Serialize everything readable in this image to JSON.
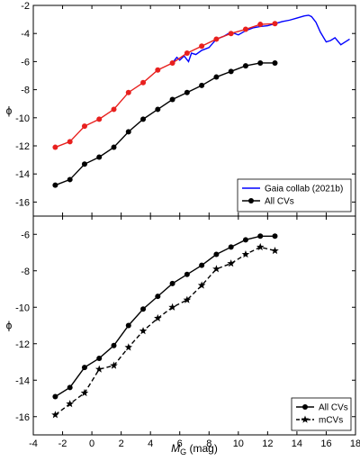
{
  "chart_data": [
    {
      "panel": "top",
      "type": "line",
      "xlabel": "",
      "ylabel": "ϕ",
      "xlim": [
        -4,
        18
      ],
      "ylim": [
        -17,
        -2
      ],
      "xticks": [
        -4,
        -2,
        0,
        2,
        4,
        6,
        8,
        10,
        12,
        14,
        16,
        18
      ],
      "yticks": [
        -16,
        -14,
        -12,
        -10,
        -8,
        -6,
        -4,
        -2
      ],
      "yticklabels": [
        "-16",
        "-14",
        "-12",
        "-10",
        "-8",
        "-6",
        "-4",
        "-2"
      ],
      "legend_position": "bottom-right",
      "series": [
        {
          "name": "Gaia collab (2021b)",
          "style": "solid-line",
          "color": "#0000ff",
          "in_legend": true,
          "x": [
            5.5,
            5.8,
            6.0,
            6.3,
            6.6,
            6.8,
            7.1,
            7.5,
            8.0,
            8.5,
            9.0,
            9.5,
            10.0,
            10.5,
            11.0,
            11.5,
            12.0,
            12.5,
            13.0,
            13.5,
            14.0,
            14.5,
            14.8,
            15.0,
            15.3,
            15.6,
            16.0,
            16.3,
            16.6,
            17.0,
            17.3,
            17.6
          ],
          "y": [
            -6.1,
            -5.7,
            -5.9,
            -5.6,
            -6.0,
            -5.4,
            -5.5,
            -5.2,
            -5.0,
            -4.4,
            -4.2,
            -3.9,
            -4.1,
            -3.8,
            -3.6,
            -3.5,
            -3.45,
            -3.3,
            -3.15,
            -3.05,
            -2.9,
            -2.75,
            -2.7,
            -2.8,
            -3.2,
            -3.9,
            -4.6,
            -4.5,
            -4.3,
            -4.8,
            -4.6,
            -4.4
          ]
        },
        {
          "name": "",
          "style": "line-with-circles",
          "color": "#e8201e",
          "in_legend": false,
          "x": [
            -2.5,
            -1.5,
            -0.5,
            0.5,
            1.5,
            2.5,
            3.5,
            4.5,
            5.5,
            6.5,
            7.5,
            8.5,
            9.5,
            10.5,
            11.5,
            12.5
          ],
          "y": [
            -12.1,
            -11.7,
            -10.6,
            -10.1,
            -9.4,
            -8.2,
            -7.5,
            -6.6,
            -6.1,
            -5.4,
            -4.9,
            -4.4,
            -4.0,
            -3.7,
            -3.35,
            -3.3
          ]
        },
        {
          "name": "All CVs",
          "style": "line-with-circles",
          "color": "#000000",
          "in_legend": true,
          "x": [
            -2.5,
            -1.5,
            -0.5,
            0.5,
            1.5,
            2.5,
            3.5,
            4.5,
            5.5,
            6.5,
            7.5,
            8.5,
            9.5,
            10.5,
            11.5,
            12.5
          ],
          "y": [
            -14.8,
            -14.4,
            -13.3,
            -12.8,
            -12.1,
            -11.0,
            -10.1,
            -9.4,
            -8.7,
            -8.2,
            -7.7,
            -7.1,
            -6.7,
            -6.3,
            -6.1,
            -6.1
          ]
        }
      ]
    },
    {
      "panel": "bottom",
      "type": "line",
      "xlabel": "MG (mag)",
      "xlabel_main": "M",
      "xlabel_sub": "G",
      "xlabel_rest": " (mag)",
      "ylabel": "ϕ",
      "xlim": [
        -4,
        18
      ],
      "ylim": [
        -17,
        -5
      ],
      "xticks": [
        -4,
        -2,
        0,
        2,
        4,
        6,
        8,
        10,
        12,
        14,
        16,
        18
      ],
      "xticklabels": [
        "-4",
        "-2",
        "0",
        "2",
        "4",
        "6",
        "8",
        "10",
        "12",
        "14",
        "16",
        "18"
      ],
      "yticks": [
        -16,
        -14,
        -12,
        -10,
        -8,
        -6
      ],
      "yticklabels": [
        "-16",
        "-14",
        "-12",
        "-10",
        "-8",
        "-6"
      ],
      "legend_position": "bottom-right",
      "series": [
        {
          "name": "All CVs",
          "style": "line-with-circles",
          "color": "#000000",
          "in_legend": true,
          "x": [
            -2.5,
            -1.5,
            -0.5,
            0.5,
            1.5,
            2.5,
            3.5,
            4.5,
            5.5,
            6.5,
            7.5,
            8.5,
            9.5,
            10.5,
            11.5,
            12.5
          ],
          "y": [
            -14.9,
            -14.4,
            -13.3,
            -12.8,
            -12.1,
            -11.0,
            -10.1,
            -9.4,
            -8.7,
            -8.2,
            -7.7,
            -7.1,
            -6.7,
            -6.3,
            -6.1,
            -6.1
          ]
        },
        {
          "name": "mCVs",
          "style": "dashed-line-with-stars",
          "color": "#000000",
          "in_legend": true,
          "x": [
            -2.5,
            -1.5,
            -0.5,
            0.5,
            1.5,
            2.5,
            3.5,
            4.5,
            5.5,
            6.5,
            7.5,
            8.5,
            9.5,
            10.5,
            11.5,
            12.5
          ],
          "y": [
            -15.9,
            -15.3,
            -14.7,
            -13.4,
            -13.2,
            -12.2,
            -11.3,
            -10.6,
            -10.0,
            -9.6,
            -8.8,
            -7.9,
            -7.6,
            -7.1,
            -6.7,
            -6.9
          ]
        }
      ]
    }
  ]
}
